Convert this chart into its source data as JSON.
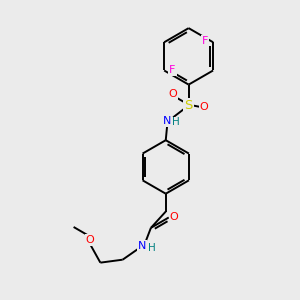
{
  "bg_color": "#ebebeb",
  "bond_color": "#000000",
  "atom_colors": {
    "F": "#ff00dd",
    "O": "#ff0000",
    "N": "#0000ff",
    "S": "#cccc00",
    "H": "#008080",
    "C": "#000000"
  },
  "lw": 1.4,
  "fs": 8.0
}
